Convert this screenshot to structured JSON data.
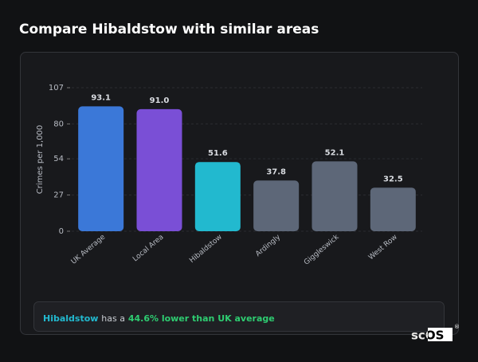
{
  "title": "Compare Hibaldstow with similar areas",
  "chart_data": {
    "type": "bar",
    "y_label": "Crimes per 1,000",
    "categories": [
      "UK Average",
      "Local Area",
      "Hibaldstow",
      "Ardingly",
      "Giggleswick",
      "West Row"
    ],
    "values": [
      93.1,
      91,
      51.6,
      37.8,
      52.1,
      32.5
    ],
    "value_labels": [
      "93.1",
      "91.0",
      "51.6",
      "37.8",
      "52.1",
      "32.5"
    ],
    "colors": [
      "#3b78d8",
      "#7a4fd6",
      "#22b9cf",
      "#5d6778",
      "#5d6778",
      "#5d6778"
    ],
    "ylim": [
      0,
      107
    ],
    "yticks": [
      0,
      27,
      54,
      80,
      107
    ],
    "grid": true
  },
  "footer": {
    "area": "Hibaldstow",
    "text": "has a",
    "comparison": "44.6% lower than UK average"
  },
  "logo": {
    "text": "scOS",
    "mark": "®"
  }
}
